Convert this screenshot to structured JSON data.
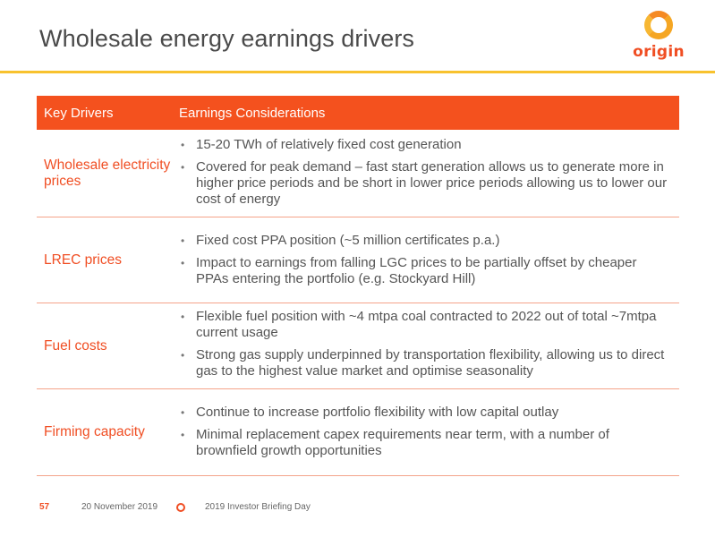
{
  "header": {
    "title": "Wholesale energy earnings drivers",
    "logo_text": "origin"
  },
  "table": {
    "col_key": "Key Drivers",
    "col_considerations": "Earnings Considerations",
    "rows": [
      {
        "driver": "Wholesale electricity prices",
        "points": [
          "15-20 TWh of relatively fixed cost generation",
          "Covered for peak demand – fast start generation allows us to generate more in higher price periods and be short in  lower price periods allowing us to lower our cost of energy"
        ]
      },
      {
        "driver": "LREC prices",
        "points": [
          "Fixed cost PPA position (~5 million certificates p.a.)",
          "Impact to earnings from falling LGC prices to be partially offset by cheaper PPAs entering the portfolio (e.g. Stockyard Hill)"
        ]
      },
      {
        "driver": "Fuel costs",
        "points": [
          "Flexible fuel position with ~4 mtpa coal contracted to 2022 out of total ~7mtpa current usage",
          "Strong gas supply underpinned by transportation flexibility, allowing us to direct gas to the highest value market and optimise seasonality"
        ]
      },
      {
        "driver": "Firming capacity",
        "points": [
          "Continue to increase portfolio flexibility with low capital outlay",
          "Minimal replacement capex requirements near term, with a number of brownfield growth opportunities"
        ]
      }
    ]
  },
  "footer": {
    "page_number": "57",
    "date": "20 November 2019",
    "event": "2019 Investor Briefing Day"
  },
  "colors": {
    "accent": "#f4511e",
    "rule": "#f8c22e",
    "driver_text": "#f04e23"
  }
}
